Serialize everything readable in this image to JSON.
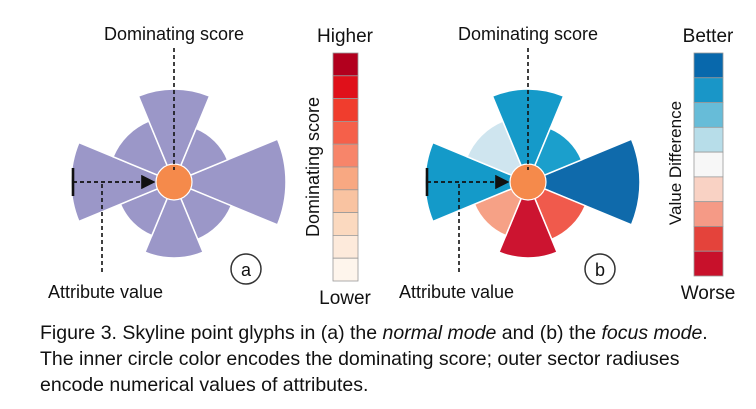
{
  "panel_a": {
    "dominating_label": "Dominating score",
    "attribute_label": "Attribute value",
    "panel_letter": "a",
    "center_color": "#f58a4b",
    "sector_color": "#9b97c8"
  },
  "panel_b": {
    "dominating_label": "Dominating score",
    "attribute_label": "Attribute value",
    "panel_letter": "b",
    "center_color": "#f58a4b"
  },
  "legend_dominating": {
    "top_label": "Higher",
    "bottom_label": "Lower",
    "axis_title": "Dominating score",
    "colors": [
      "#b2001e",
      "#e0101a",
      "#f03d2d",
      "#f5604a",
      "#f7856a",
      "#f8a882",
      "#f9c3a1",
      "#fbd9bf",
      "#fdeadb",
      "#fef5ec"
    ]
  },
  "legend_value_difference": {
    "top_label": "Better",
    "bottom_label": "Worse",
    "axis_title": "Value Difference",
    "colors": [
      "#0868ac",
      "#1996c8",
      "#67bcd8",
      "#b7dde9",
      "#f7f7f7",
      "#f9d2c4",
      "#f59a86",
      "#e4433b",
      "#c8112b"
    ]
  },
  "caption": {
    "prefix": "Figure 3. Skyline point glyphs in (a) the ",
    "normal_mode": "normal mode",
    "middle": " and (b) the ",
    "focus_mode": "focus mode",
    "suffix": ". The inner circle color encodes the dominating score; outer sector radiuses encode numerical values of attributes."
  }
}
